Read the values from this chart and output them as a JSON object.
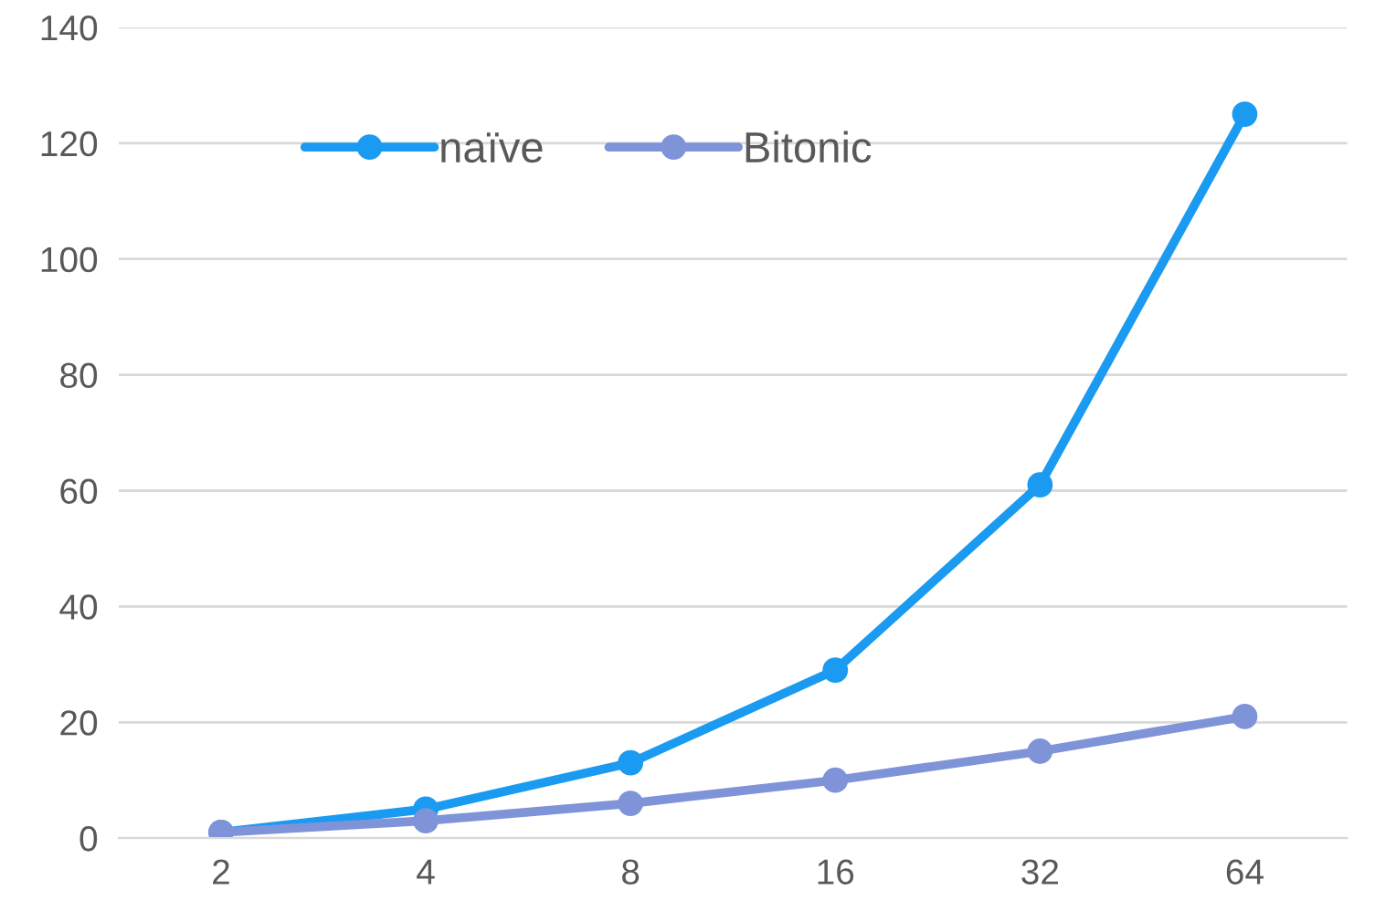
{
  "chart_data": {
    "type": "line",
    "categories": [
      "2",
      "4",
      "8",
      "16",
      "32",
      "64"
    ],
    "series": [
      {
        "name": "naïve",
        "color": "#1a9af0",
        "values": [
          1,
          5,
          13,
          29,
          61,
          125
        ]
      },
      {
        "name": "Bitonic",
        "color": "#7f93d8",
        "values": [
          1,
          3,
          6,
          10,
          15,
          21
        ]
      }
    ],
    "ylim": [
      0,
      140
    ],
    "yticks": [
      0,
      20,
      40,
      60,
      80,
      100,
      120,
      140
    ],
    "grid": "y",
    "legend": "top left",
    "marker": "circle",
    "line_style": "solid"
  }
}
